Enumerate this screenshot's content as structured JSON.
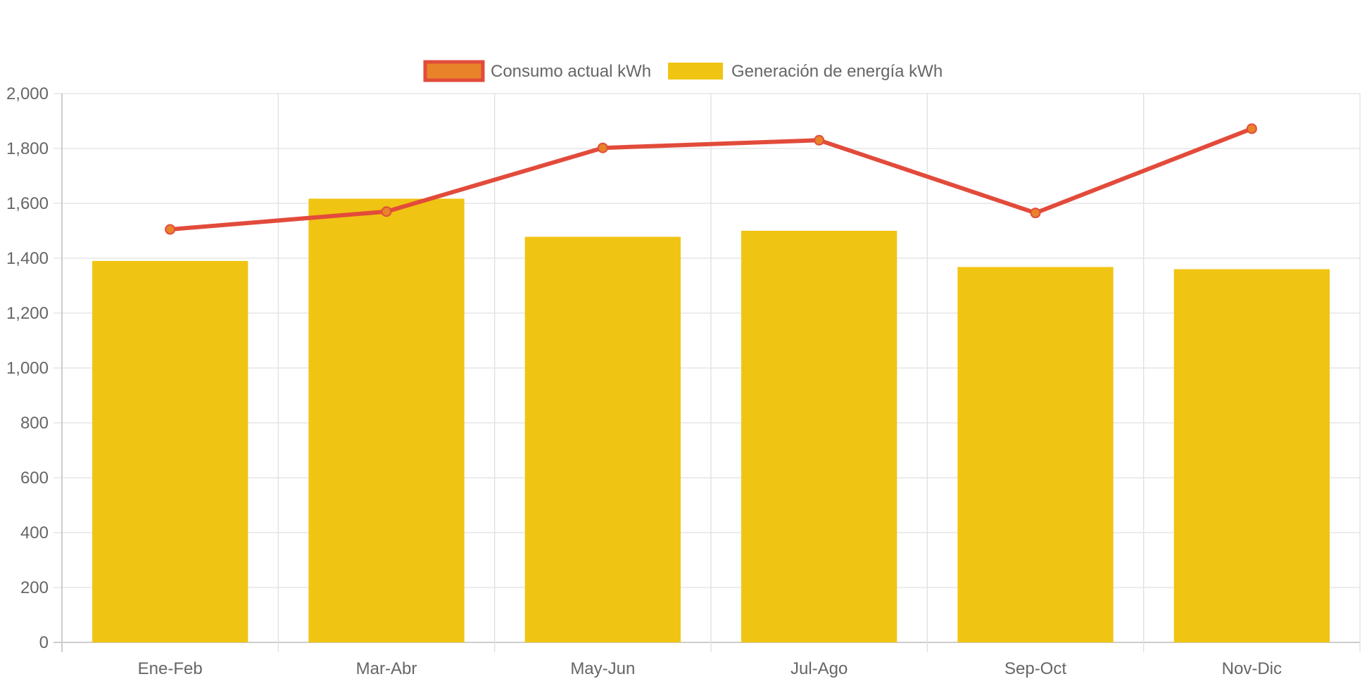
{
  "chart_data": {
    "type": "bar",
    "categories": [
      "Ene-Feb",
      "Mar-Abr",
      "May-Jun",
      "Jul-Ago",
      "Sep-Oct",
      "Nov-Dic"
    ],
    "series": [
      {
        "name": "Consumo actual kWh",
        "type": "line",
        "values": [
          1505,
          1570,
          1802,
          1830,
          1565,
          1872
        ],
        "color": "#e24b3b",
        "point_color": "#e8832a"
      },
      {
        "name": "Generación de energía kWh",
        "type": "bar",
        "values": [
          1390,
          1617,
          1478,
          1500,
          1368,
          1360
        ],
        "color": "#f0c412"
      }
    ],
    "ylim": [
      0,
      2000
    ],
    "yticks": [
      0,
      200,
      400,
      600,
      800,
      1000,
      1200,
      1400,
      1600,
      1800,
      2000
    ],
    "ytick_labels": [
      "0",
      "200",
      "400",
      "600",
      "800",
      "1,000",
      "1,200",
      "1,400",
      "1,600",
      "1,800",
      "2,000"
    ],
    "grid": true,
    "legend_position": "top-center",
    "title": "",
    "xlabel": "",
    "ylabel": ""
  },
  "colors": {
    "grid": "#e0e0e0",
    "axis": "#cccccc",
    "text": "#666666",
    "legend_line_fill": "#e8832a"
  }
}
